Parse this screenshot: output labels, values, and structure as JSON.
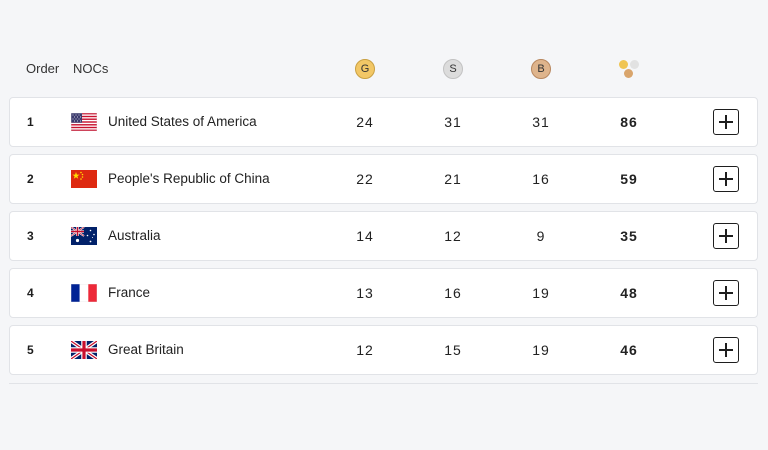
{
  "header": {
    "order_label": "Order",
    "nocs_label": "NOCs",
    "gold_label": "G",
    "silver_label": "S",
    "bronze_label": "B"
  },
  "rows": [
    {
      "order": "1",
      "country": "United States of America",
      "flag": "usa-flag",
      "gold": "24",
      "silver": "31",
      "bronze": "31",
      "total": "86"
    },
    {
      "order": "2",
      "country": "People's Republic of China",
      "flag": "china-flag",
      "gold": "22",
      "silver": "21",
      "bronze": "16",
      "total": "59"
    },
    {
      "order": "3",
      "country": "Australia",
      "flag": "australia-flag",
      "gold": "14",
      "silver": "12",
      "bronze": "9",
      "total": "35"
    },
    {
      "order": "4",
      "country": "France",
      "flag": "france-flag",
      "gold": "13",
      "silver": "16",
      "bronze": "19",
      "total": "48"
    },
    {
      "order": "5",
      "country": "Great Britain",
      "flag": "great-britain-flag",
      "gold": "12",
      "silver": "15",
      "bronze": "19",
      "total": "46"
    }
  ],
  "colors": {
    "gold": "#f2c766",
    "silver": "#dcdcdc",
    "bronze": "#deb48c",
    "background": "#f5f6f8"
  }
}
